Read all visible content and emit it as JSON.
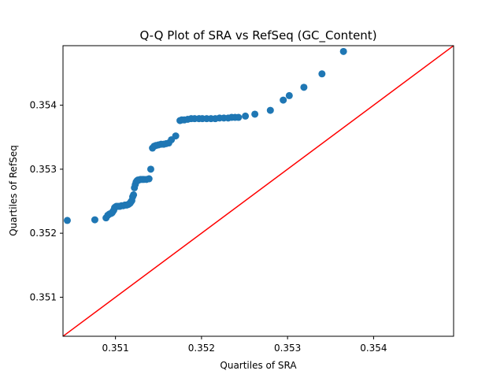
{
  "chart_data": {
    "type": "scatter",
    "title": "Q-Q Plot of SRA vs RefSeq (GC_Content)",
    "xlabel": "Quartiles of SRA",
    "ylabel": "Quartiles of RefSeq",
    "xlim": [
      0.35039,
      0.35493
    ],
    "ylim": [
      0.35039,
      0.35493
    ],
    "xticks": [
      "0.351",
      "0.352",
      "0.353",
      "0.354"
    ],
    "yticks": [
      "0.351",
      "0.352",
      "0.353",
      "0.354"
    ],
    "grid": false,
    "marker_color": "#1f77b4",
    "reference_line": {
      "color": "#ff0000",
      "from": [
        0.35039,
        0.35039
      ],
      "to": [
        0.35493,
        0.35493
      ]
    },
    "series": [
      {
        "x": [
          0.35044,
          0.35076,
          0.35089,
          0.35091,
          0.35093,
          0.35095,
          0.35096,
          0.35097,
          0.35098,
          0.35099,
          0.351,
          0.35101,
          0.35103,
          0.35105,
          0.35107,
          0.35109,
          0.35111,
          0.35113,
          0.35115,
          0.35116,
          0.35117,
          0.35118,
          0.35119,
          0.3512,
          0.35121,
          0.35122,
          0.35123,
          0.35124,
          0.35125,
          0.35126,
          0.35127,
          0.35129,
          0.35131,
          0.35133,
          0.35136,
          0.35139,
          0.35141,
          0.35143,
          0.35145,
          0.35147,
          0.3515,
          0.35153,
          0.35156,
          0.35159,
          0.35162,
          0.35165,
          0.3517,
          0.35175,
          0.35177,
          0.3518,
          0.35184,
          0.35188,
          0.35192,
          0.35197,
          0.35201,
          0.35206,
          0.35211,
          0.35216,
          0.35221,
          0.35226,
          0.35231,
          0.35235,
          0.35239,
          0.35243,
          0.35251,
          0.35262,
          0.3528,
          0.35295,
          0.35302,
          0.35319,
          0.3534,
          0.35365
        ],
        "y": [
          0.3522,
          0.35221,
          0.35224,
          0.35228,
          0.3523,
          0.35231,
          0.35232,
          0.35234,
          0.35236,
          0.3524,
          0.35241,
          0.35242,
          0.35242,
          0.35242,
          0.35243,
          0.35243,
          0.35244,
          0.35244,
          0.35245,
          0.35246,
          0.35247,
          0.35249,
          0.35251,
          0.35257,
          0.3526,
          0.35271,
          0.35276,
          0.3528,
          0.35282,
          0.35283,
          0.35283,
          0.35284,
          0.35284,
          0.35284,
          0.35284,
          0.35285,
          0.353,
          0.35333,
          0.35336,
          0.35337,
          0.35338,
          0.35339,
          0.35339,
          0.3534,
          0.35341,
          0.35346,
          0.35352,
          0.35376,
          0.35377,
          0.35377,
          0.35378,
          0.35379,
          0.35379,
          0.35379,
          0.35379,
          0.35379,
          0.35379,
          0.35379,
          0.3538,
          0.3538,
          0.3538,
          0.35381,
          0.35381,
          0.35381,
          0.35383,
          0.35386,
          0.35392,
          0.35408,
          0.35415,
          0.35428,
          0.35449,
          0.35484
        ]
      }
    ]
  }
}
